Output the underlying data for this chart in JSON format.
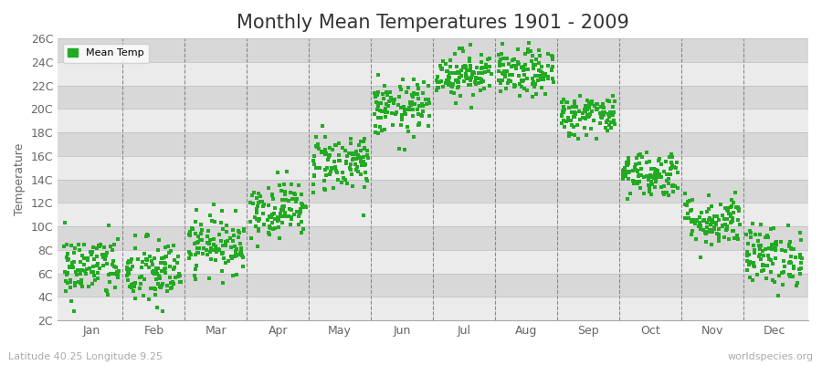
{
  "title": "Monthly Mean Temperatures 1901 - 2009",
  "ylabel": "Temperature",
  "subtitle": "Latitude 40.25 Longitude 9.25",
  "watermark": "worldspecies.org",
  "legend_label": "Mean Temp",
  "dot_color": "#22aa22",
  "bg_color": "#ffffff",
  "plot_bg_color_light": "#ebebeb",
  "plot_bg_color_dark": "#d8d8d8",
  "ylim": [
    2,
    26
  ],
  "ytick_labels": [
    "2C",
    "4C",
    "6C",
    "8C",
    "10C",
    "12C",
    "14C",
    "16C",
    "18C",
    "20C",
    "22C",
    "24C",
    "26C"
  ],
  "ytick_values": [
    2,
    4,
    6,
    8,
    10,
    12,
    14,
    16,
    18,
    20,
    22,
    24,
    26
  ],
  "month_names": [
    "Jan",
    "Feb",
    "Mar",
    "Apr",
    "May",
    "Jun",
    "Jul",
    "Aug",
    "Sep",
    "Oct",
    "Nov",
    "Dec"
  ],
  "monthly_means": [
    6.5,
    6.0,
    8.5,
    11.5,
    15.5,
    20.0,
    23.0,
    23.0,
    19.5,
    14.5,
    10.5,
    7.5
  ],
  "monthly_stds": [
    1.4,
    1.5,
    1.2,
    1.2,
    1.3,
    1.2,
    1.0,
    1.0,
    0.9,
    1.0,
    1.1,
    1.3
  ],
  "n_years": 109,
  "seed": 42,
  "title_fontsize": 15,
  "axis_label_fontsize": 9,
  "tick_fontsize": 9,
  "dot_size": 10,
  "dot_alpha": 1.0,
  "vline_color": "#888888",
  "spine_color": "#aaaaaa",
  "tick_color": "#666666",
  "subtitle_color": "#aaaaaa",
  "watermark_color": "#aaaaaa"
}
